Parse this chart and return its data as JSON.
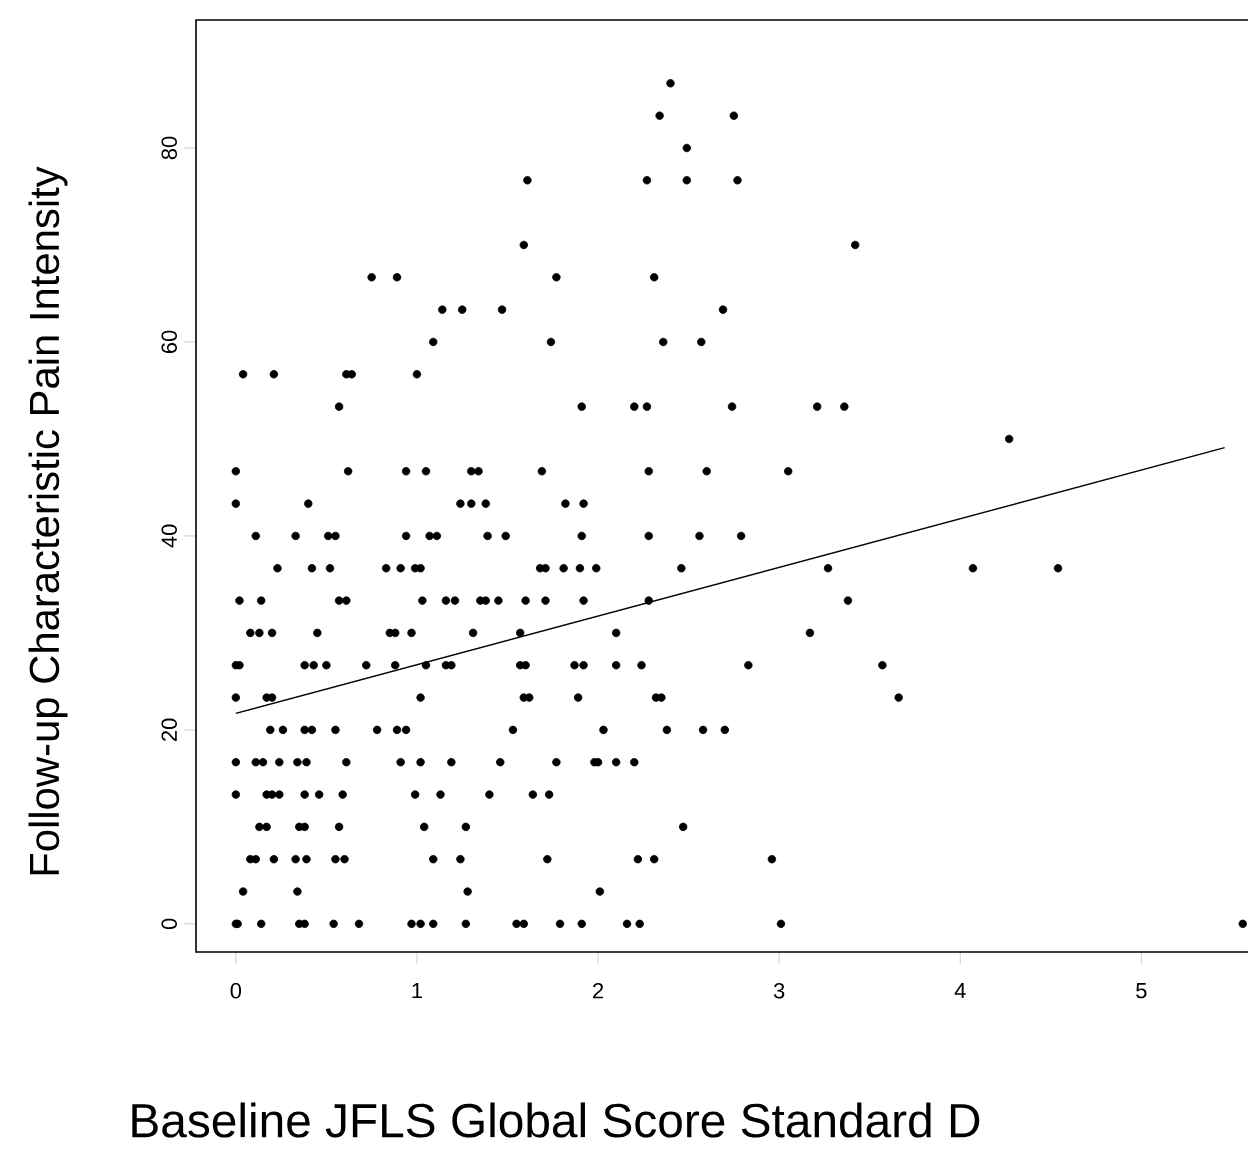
{
  "chart_data": {
    "type": "scatter",
    "xlabel": "Baseline JFLS Global Score Standard D",
    "ylabel": "Follow-up Characteristic Pain Intensity",
    "xlim": [
      -0.22,
      5.6
    ],
    "ylim": [
      -2.9,
      93.2
    ],
    "xticks": [
      0,
      1,
      2,
      3,
      4,
      5
    ],
    "yticks": [
      0,
      20,
      40,
      60,
      80
    ],
    "series": [
      {
        "color": "#000000",
        "marker": "circle",
        "x": [
          0,
          0.01,
          0.14,
          0.35,
          0.38,
          0.54,
          0.68,
          0.97,
          1.02,
          1.09,
          1.27,
          1.55,
          1.59,
          1.79,
          1.91,
          2.16,
          2.23,
          3.01,
          5.56,
          0.04,
          0.34,
          1.28,
          2.01,
          0.08,
          0.11,
          0.21,
          0.33,
          0.39,
          0.55,
          0.6,
          1.09,
          1.24,
          1.72,
          2.22,
          2.31,
          2.96,
          0.13,
          0.17,
          0.35,
          0.38,
          0.57,
          1.04,
          1.27,
          2.47,
          0,
          0.17,
          0.2,
          0.24,
          0.38,
          0.46,
          0.59,
          0.99,
          1.13,
          1.4,
          1.64,
          1.73,
          0,
          0.11,
          0.15,
          0.24,
          0.34,
          0.39,
          0.61,
          0.91,
          1.02,
          1.19,
          1.46,
          1.77,
          1.98,
          2.0,
          2.1,
          2.2,
          0.19,
          0.26,
          0.38,
          0.42,
          0.55,
          0.78,
          0.89,
          0.94,
          1.53,
          2.03,
          2.38,
          2.58,
          2.7,
          0,
          0.17,
          0.2,
          1.02,
          1.59,
          1.62,
          1.89,
          2.32,
          2.35,
          3.66,
          0,
          0.02,
          0.38,
          0.43,
          0.5,
          0.72,
          0.88,
          1.05,
          1.16,
          1.19,
          1.57,
          1.6,
          1.87,
          1.92,
          2.1,
          2.24,
          2.83,
          3.57,
          0.08,
          0.13,
          0.2,
          0.45,
          0.85,
          0.88,
          0.97,
          1.31,
          1.57,
          2.1,
          3.17,
          0.02,
          0.14,
          0.57,
          0.61,
          1.03,
          1.16,
          1.21,
          1.35,
          1.38,
          1.45,
          1.6,
          1.71,
          1.92,
          2.28,
          3.38,
          0.23,
          0.42,
          0.52,
          0.83,
          0.91,
          0.99,
          1.02,
          1.68,
          1.71,
          1.81,
          1.9,
          1.99,
          2.46,
          3.27,
          4.07,
          4.54,
          0.11,
          0.33,
          0.51,
          0.55,
          0.94,
          1.07,
          1.11,
          1.39,
          1.49,
          1.91,
          2.28,
          2.56,
          2.79,
          0,
          0.4,
          1.24,
          1.3,
          1.38,
          1.82,
          1.92,
          0,
          0.62,
          0.94,
          1.05,
          1.3,
          1.34,
          1.69,
          2.28,
          2.6,
          3.05,
          4.27,
          0.57,
          1.91,
          2.2,
          2.27,
          2.74,
          3.21,
          3.36,
          0.04,
          0.21,
          0.61,
          0.64,
          1.0,
          1.09,
          1.74,
          2.36,
          2.57,
          1.14,
          1.25,
          1.47,
          2.69,
          0.75,
          0.89,
          1.77,
          2.31,
          1.59,
          3.42,
          1.61,
          2.27,
          2.49,
          2.77,
          2.49,
          2.34,
          2.75,
          2.4
        ],
        "values": [
          0,
          0,
          0,
          0,
          0,
          0,
          0,
          0,
          0,
          0,
          0,
          0,
          0,
          0,
          0,
          0,
          0,
          0,
          0,
          3.33,
          3.33,
          3.33,
          3.33,
          6.67,
          6.67,
          6.67,
          6.67,
          6.67,
          6.67,
          6.67,
          6.67,
          6.67,
          6.67,
          6.67,
          6.67,
          6.67,
          10,
          10,
          10,
          10,
          10,
          10,
          10,
          10,
          13.33,
          13.33,
          13.33,
          13.33,
          13.33,
          13.33,
          13.33,
          13.33,
          13.33,
          13.33,
          13.33,
          13.33,
          16.67,
          16.67,
          16.67,
          16.67,
          16.67,
          16.67,
          16.67,
          16.67,
          16.67,
          16.67,
          16.67,
          16.67,
          16.67,
          16.67,
          16.67,
          16.67,
          20,
          20,
          20,
          20,
          20,
          20,
          20,
          20,
          20,
          20,
          20,
          20,
          20,
          23.33,
          23.33,
          23.33,
          23.33,
          23.33,
          23.33,
          23.33,
          23.33,
          23.33,
          23.33,
          26.67,
          26.67,
          26.67,
          26.67,
          26.67,
          26.67,
          26.67,
          26.67,
          26.67,
          26.67,
          26.67,
          26.67,
          26.67,
          26.67,
          26.67,
          26.67,
          26.67,
          26.67,
          30,
          30,
          30,
          30,
          30,
          30,
          30,
          30,
          30,
          30,
          30,
          33.33,
          33.33,
          33.33,
          33.33,
          33.33,
          33.33,
          33.33,
          33.33,
          33.33,
          33.33,
          33.33,
          33.33,
          33.33,
          33.33,
          33.33,
          36.67,
          36.67,
          36.67,
          36.67,
          36.67,
          36.67,
          36.67,
          36.67,
          36.67,
          36.67,
          36.67,
          36.67,
          36.67,
          36.67,
          36.67,
          36.67,
          40,
          40,
          40,
          40,
          40,
          40,
          40,
          40,
          40,
          40,
          40,
          40,
          40,
          43.33,
          43.33,
          43.33,
          43.33,
          43.33,
          43.33,
          43.33,
          46.67,
          46.67,
          46.67,
          46.67,
          46.67,
          46.67,
          46.67,
          46.67,
          46.67,
          46.67,
          50,
          53.33,
          53.33,
          53.33,
          53.33,
          53.33,
          53.33,
          53.33,
          56.67,
          56.67,
          56.67,
          56.67,
          56.67,
          60,
          60,
          60,
          60,
          63.33,
          63.33,
          63.33,
          63.33,
          66.67,
          66.67,
          66.67,
          66.67,
          70,
          70,
          76.67,
          76.67,
          76.67,
          76.67,
          80,
          83.33,
          83.33,
          86.67
        ]
      },
      {
        "type": "line",
        "color": "#000000",
        "marker": "none",
        "line_style": "solid",
        "x": [
          0,
          5.46
        ],
        "values": [
          21.7,
          49.1
        ]
      }
    ]
  }
}
